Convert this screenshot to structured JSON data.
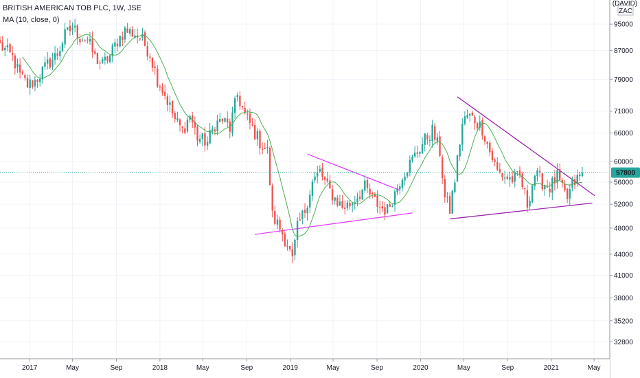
{
  "legend": {
    "symbol_line": "BRITISH AMERICAN TOB PLC, 1W, JSE",
    "ma_line": "MA (10, close, 0)"
  },
  "axis": {
    "currency_top": "(DAVID)",
    "currency": "ZAC"
  },
  "colors": {
    "up": "#26a69a",
    "down": "#ef5350",
    "ma": "#4caf50",
    "trend_magenta": "#e040fb",
    "trend_purple": "#9c27b0",
    "price_label_bg": "#26a69a",
    "grid": "#f0f3fa"
  },
  "chart_data": {
    "type": "candlestick",
    "title": "BRITISH AMERICAN TOB PLC, 1W, JSE",
    "indicator": "MA (10, close, 0)",
    "log_scale": true,
    "ylim": [
      31000,
      103000
    ],
    "yticks": [
      95000,
      87000,
      79000,
      71000,
      66000,
      60000,
      56000,
      52000,
      48000,
      44000,
      41000,
      38000,
      35200,
      32800
    ],
    "current_price": 57800,
    "current_price_label": "57800",
    "xlim": [
      "2016-10-10",
      "2021-06-14"
    ],
    "xticks": [
      {
        "date": "2017-01-01",
        "label": "2017"
      },
      {
        "date": "2017-05-01",
        "label": "May"
      },
      {
        "date": "2017-09-01",
        "label": "Sep"
      },
      {
        "date": "2018-01-01",
        "label": "2018"
      },
      {
        "date": "2018-05-01",
        "label": "May"
      },
      {
        "date": "2018-09-01",
        "label": "Sep"
      },
      {
        "date": "2019-01-01",
        "label": "2019"
      },
      {
        "date": "2019-05-01",
        "label": "May"
      },
      {
        "date": "2019-09-01",
        "label": "Sep"
      },
      {
        "date": "2020-01-01",
        "label": "2020"
      },
      {
        "date": "2020-05-01",
        "label": "May"
      },
      {
        "date": "2020-09-01",
        "label": "Sep"
      },
      {
        "date": "2021-01-01",
        "label": "2021"
      },
      {
        "date": "2021-05-01",
        "label": "May"
      }
    ],
    "close_keypoints": [
      [
        "2016-10-10",
        88500
      ],
      [
        "2016-11-14",
        85000
      ],
      [
        "2016-12-05",
        80000
      ],
      [
        "2016-12-26",
        77500
      ],
      [
        "2017-01-16",
        78500
      ],
      [
        "2017-02-20",
        83000
      ],
      [
        "2017-03-20",
        86000
      ],
      [
        "2017-04-10",
        91500
      ],
      [
        "2017-05-01",
        94000
      ],
      [
        "2017-05-22",
        91000
      ],
      [
        "2017-06-12",
        90000
      ],
      [
        "2017-07-03",
        85000
      ],
      [
        "2017-07-24",
        83000
      ],
      [
        "2017-08-14",
        85500
      ],
      [
        "2017-09-04",
        90000
      ],
      [
        "2017-09-25",
        93000
      ],
      [
        "2017-10-23",
        92000
      ],
      [
        "2017-11-13",
        90000
      ],
      [
        "2017-12-04",
        86000
      ],
      [
        "2017-12-25",
        79000
      ],
      [
        "2018-01-15",
        75000
      ],
      [
        "2018-02-12",
        69000
      ],
      [
        "2018-03-05",
        66500
      ],
      [
        "2018-03-26",
        70000
      ],
      [
        "2018-04-16",
        65000
      ],
      [
        "2018-05-14",
        64000
      ],
      [
        "2018-06-04",
        68000
      ],
      [
        "2018-06-25",
        69000
      ],
      [
        "2018-07-16",
        67000
      ],
      [
        "2018-08-06",
        75000
      ],
      [
        "2018-08-27",
        70000
      ],
      [
        "2018-09-17",
        67000
      ],
      [
        "2018-10-08",
        64000
      ],
      [
        "2018-10-29",
        62000
      ],
      [
        "2018-11-12",
        50000
      ],
      [
        "2018-12-03",
        48000
      ],
      [
        "2018-12-24",
        45500
      ],
      [
        "2019-01-07",
        43000
      ],
      [
        "2019-01-21",
        48000
      ],
      [
        "2019-02-11",
        51000
      ],
      [
        "2019-03-04",
        56000
      ],
      [
        "2019-03-25",
        58000
      ],
      [
        "2019-04-15",
        55000
      ],
      [
        "2019-05-06",
        53000
      ],
      [
        "2019-05-27",
        51500
      ],
      [
        "2019-06-17",
        52000
      ],
      [
        "2019-07-08",
        53500
      ],
      [
        "2019-07-29",
        55000
      ],
      [
        "2019-08-19",
        53000
      ],
      [
        "2019-09-09",
        51500
      ],
      [
        "2019-09-30",
        51000
      ],
      [
        "2019-10-21",
        54000
      ],
      [
        "2019-11-11",
        57500
      ],
      [
        "2019-12-02",
        59500
      ],
      [
        "2019-12-23",
        62000
      ],
      [
        "2020-01-13",
        64500
      ],
      [
        "2020-02-03",
        66500
      ],
      [
        "2020-02-24",
        62000
      ],
      [
        "2020-03-09",
        53000
      ],
      [
        "2020-03-23",
        51000
      ],
      [
        "2020-04-06",
        56500
      ],
      [
        "2020-04-27",
        68000
      ],
      [
        "2020-05-11",
        70000
      ],
      [
        "2020-06-01",
        69000
      ],
      [
        "2020-06-22",
        67000
      ],
      [
        "2020-07-13",
        62000
      ],
      [
        "2020-08-03",
        58000
      ],
      [
        "2020-08-24",
        57000
      ],
      [
        "2020-09-14",
        56500
      ],
      [
        "2020-10-05",
        57000
      ],
      [
        "2020-10-26",
        52000
      ],
      [
        "2020-11-16",
        57500
      ],
      [
        "2020-12-07",
        56000
      ],
      [
        "2020-12-28",
        55000
      ],
      [
        "2021-01-18",
        57000
      ],
      [
        "2021-02-01",
        54500
      ],
      [
        "2021-02-15",
        53000
      ],
      [
        "2021-03-01",
        55500
      ],
      [
        "2021-03-15",
        56500
      ],
      [
        "2021-03-29",
        57800
      ]
    ],
    "trend_lines": [
      {
        "name": "triangle-2019-upper",
        "color": "magenta",
        "from": [
          "2019-02-18",
          61500
        ],
        "to": [
          "2019-11-04",
          54500
        ]
      },
      {
        "name": "triangle-2019-lower",
        "color": "magenta",
        "from": [
          "2018-09-24",
          47000
        ],
        "to": [
          "2019-12-09",
          50500
        ]
      },
      {
        "name": "triangle-2020-upper",
        "color": "purple",
        "from": [
          "2020-04-13",
          74500
        ],
        "to": [
          "2021-05-03",
          53500
        ]
      },
      {
        "name": "triangle-2020-lower",
        "color": "purple",
        "from": [
          "2020-03-23",
          49500
        ],
        "to": [
          "2021-04-26",
          52200
        ]
      }
    ]
  }
}
